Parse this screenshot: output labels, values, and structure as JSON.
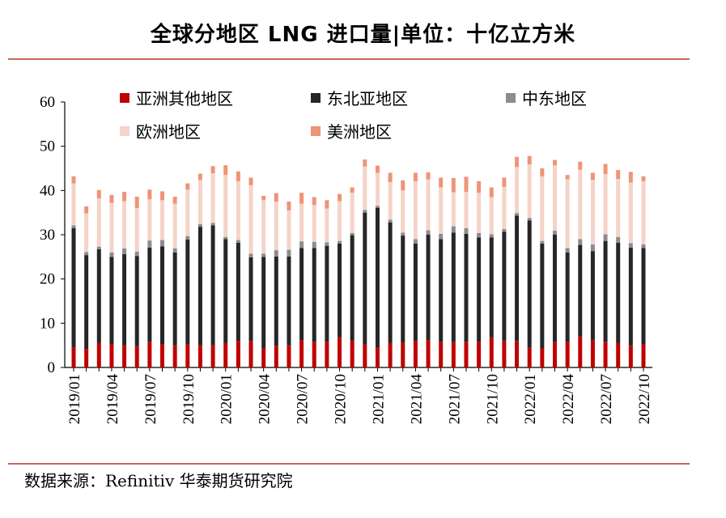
{
  "title": "全球分地区 LNG 进口量|单位：十亿立方米",
  "source": "数据来源：Refinitiv 华泰期货研究院",
  "chart_data": {
    "type": "bar",
    "stacked": true,
    "ylim": [
      0,
      60
    ],
    "yticks": [
      "0",
      "10",
      "20",
      "30",
      "40",
      "50",
      "60"
    ],
    "categories": [
      "2019/01",
      "2019/02",
      "2019/03",
      "2019/04",
      "2019/05",
      "2019/06",
      "2019/07",
      "2019/08",
      "2019/09",
      "2019/10",
      "2019/11",
      "2019/12",
      "2020/01",
      "2020/02",
      "2020/03",
      "2020/04",
      "2020/05",
      "2020/06",
      "2020/07",
      "2020/08",
      "2020/09",
      "2020/10",
      "2020/11",
      "2020/12",
      "2021/01",
      "2021/02",
      "2021/03",
      "2021/04",
      "2021/05",
      "2021/06",
      "2021/07",
      "2021/08",
      "2021/09",
      "2021/10",
      "2021/11",
      "2021/12",
      "2022/01",
      "2022/02",
      "2022/03",
      "2022/04",
      "2022/05",
      "2022/06",
      "2022/07",
      "2022/08",
      "2022/09",
      "2022/10"
    ],
    "xtick_labels": [
      "2019/01",
      "2019/04",
      "2019/07",
      "2019/10",
      "2020/01",
      "2020/04",
      "2020/07",
      "2020/10",
      "2021/01",
      "2021/04",
      "2021/07",
      "2021/10",
      "2022/01",
      "2022/04",
      "2022/07",
      "2022/10"
    ],
    "series": [
      {
        "name": "亚洲其他地区",
        "color": "#c00000",
        "values": [
          4.5,
          4.2,
          5.5,
          5.3,
          5.0,
          4.8,
          5.8,
          5.3,
          5.0,
          5.2,
          5.0,
          5.0,
          5.5,
          6.0,
          6.0,
          4.3,
          4.9,
          5.0,
          6.2,
          5.8,
          5.8,
          6.8,
          6.0,
          5.2,
          4.5,
          5.5,
          5.6,
          6.0,
          6.2,
          5.8,
          5.8,
          5.8,
          5.8,
          6.8,
          6.0,
          6.0,
          4.5,
          4.3,
          5.8,
          5.8,
          7.0,
          6.2,
          5.8,
          5.5,
          5.0,
          5.3
        ]
      },
      {
        "name": "东北亚地区",
        "color": "#262626",
        "values": [
          27.0,
          21.2,
          21.2,
          19.7,
          20.6,
          20.4,
          21.3,
          22.1,
          21.0,
          23.7,
          26.8,
          27.1,
          23.5,
          22.2,
          18.9,
          20.7,
          20.2,
          20.1,
          20.8,
          21.2,
          21.7,
          21.2,
          23.9,
          29.8,
          31.6,
          27.3,
          24.2,
          22.0,
          23.8,
          23.2,
          24.7,
          24.4,
          23.6,
          22.6,
          24.7,
          28.3,
          28.7,
          23.7,
          24.2,
          20.2,
          20.7,
          20.1,
          22.8,
          22.7,
          22.1,
          21.7
        ]
      },
      {
        "name": "中东地区",
        "color": "#8c8c8c",
        "values": [
          0.6,
          0.7,
          0.6,
          1.0,
          1.3,
          1.0,
          1.6,
          1.4,
          0.9,
          0.8,
          0.6,
          0.6,
          0.5,
          0.6,
          0.8,
          0.7,
          1.4,
          1.5,
          1.5,
          1.4,
          0.8,
          0.6,
          0.5,
          0.6,
          0.4,
          0.6,
          0.7,
          1.0,
          1.0,
          1.2,
          1.4,
          1.3,
          1.0,
          0.7,
          0.6,
          0.6,
          0.6,
          0.6,
          0.9,
          1.0,
          1.3,
          1.5,
          1.5,
          1.3,
          1.0,
          0.8
        ]
      },
      {
        "name": "欧洲地区",
        "color": "#f5d3c8",
        "values": [
          9.5,
          8.7,
          10.9,
          11.2,
          10.7,
          9.8,
          9.3,
          9.0,
          10.1,
          10.5,
          10.0,
          11.2,
          14.0,
          13.3,
          15.5,
          12.1,
          11.0,
          8.9,
          8.5,
          8.3,
          7.6,
          9.0,
          9.1,
          9.8,
          7.5,
          8.5,
          9.5,
          13.1,
          11.5,
          10.5,
          7.7,
          8.2,
          9.1,
          8.4,
          9.5,
          10.4,
          12.1,
          14.6,
          14.8,
          15.5,
          15.7,
          14.6,
          13.6,
          13.1,
          13.7,
          14.3
        ]
      },
      {
        "name": "美洲地区",
        "color": "#ee9477",
        "values": [
          1.6,
          1.6,
          1.9,
          1.8,
          2.1,
          2.6,
          2.2,
          2.0,
          1.6,
          1.4,
          1.4,
          1.6,
          2.2,
          2.2,
          1.7,
          1.0,
          1.9,
          2.0,
          2.5,
          1.8,
          1.9,
          1.6,
          1.2,
          1.6,
          1.6,
          2.1,
          2.3,
          1.9,
          1.6,
          2.2,
          3.2,
          3.4,
          2.6,
          2.2,
          2.1,
          2.3,
          1.9,
          1.8,
          1.2,
          1.0,
          1.8,
          1.6,
          2.3,
          2.0,
          2.4,
          1.1
        ]
      }
    ]
  }
}
